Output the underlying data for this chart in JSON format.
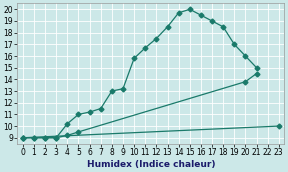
{
  "xlabel": "Humidex (Indice chaleur)",
  "bg_color": "#cce8e8",
  "grid_color": "#ffffff",
  "line_color": "#1a7a6a",
  "xlim": [
    -0.5,
    23.5
  ],
  "ylim": [
    8.5,
    20.5
  ],
  "xticks": [
    0,
    1,
    2,
    3,
    4,
    5,
    6,
    7,
    8,
    9,
    10,
    11,
    12,
    13,
    14,
    15,
    16,
    17,
    18,
    19,
    20,
    21,
    22,
    23
  ],
  "yticks": [
    9,
    10,
    11,
    12,
    13,
    14,
    15,
    16,
    17,
    18,
    19,
    20
  ],
  "line1_x": [
    0,
    1,
    2,
    3,
    4,
    5,
    6,
    7,
    8,
    9,
    10,
    11,
    12,
    13,
    14,
    15,
    16,
    17,
    18,
    19,
    20,
    21
  ],
  "line1_y": [
    9,
    9,
    9,
    9,
    10.2,
    11.0,
    11.2,
    11.5,
    13.0,
    13.2,
    15.8,
    16.7,
    17.5,
    18.5,
    19.7,
    20.0,
    19.5,
    19.0,
    18.5,
    17.0,
    16.0,
    15.0
  ],
  "line2_x": [
    0,
    1,
    2,
    3,
    4,
    5,
    20,
    21
  ],
  "line2_y": [
    9,
    9,
    9,
    9,
    9.2,
    9.5,
    13.8,
    14.5
  ],
  "line3_x": [
    0,
    23
  ],
  "line3_y": [
    9,
    10.0
  ],
  "xlabel_color": "#1a1a6a",
  "xlabel_fontsize": 6.5,
  "tick_fontsize": 5.5,
  "marker_size": 2.5,
  "linewidth": 0.9
}
